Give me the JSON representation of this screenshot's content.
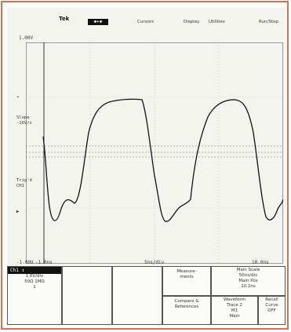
{
  "header": {
    "brand": "Tek",
    "run_state": "◆▸◆",
    "menus": [
      "Cursors",
      "Display",
      "Utilities",
      "Run/Stop"
    ]
  },
  "scale": {
    "top_voltage": "1.00V",
    "bottom_voltage": "-1.00V",
    "left_time": "-1.0ns",
    "center_time": "5ns/div",
    "right_time": "10.0ns"
  },
  "side_labels": {
    "marker_1": "→",
    "measure_1": "Slope\n-16V/s",
    "measure_2": "Trig'd\nCH1",
    "trigger_marker": "▶"
  },
  "buttons": {
    "channel_box": "Ch1 ↕",
    "channel_vals": [
      "1.0V/div",
      "50Ω 1MΩ",
      "1"
    ],
    "measure": "Measure-\nments",
    "main_scale": "Main Scale\n50ns/div\nMain Pos\n10.2ns",
    "compare": "Compare &\nReferences",
    "waveform": "Waveform\nTrace 2\nM1\nMain",
    "recall": "Recall\nCurve\nOFF"
  },
  "colors": {
    "frame": "#d9704a",
    "trace": "#111111",
    "grid": "#9a9a9a",
    "background": "#f4f4ef"
  }
}
